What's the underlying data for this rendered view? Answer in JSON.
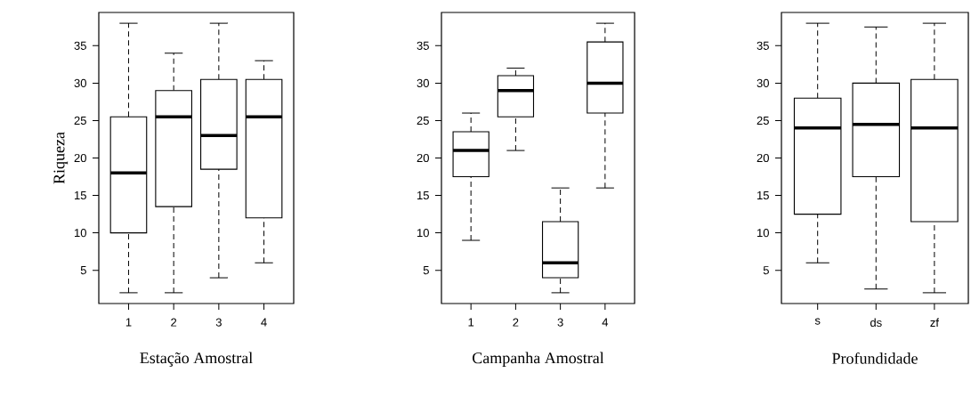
{
  "chart_data": [
    {
      "type": "box",
      "ylabel": "Riqueza",
      "xlabel": "Estação Amostral",
      "categories": [
        "1",
        "2",
        "3",
        "4"
      ],
      "ylim": [
        0.56,
        39.44
      ],
      "yticks": [
        5,
        10,
        15,
        20,
        25,
        30,
        35
      ],
      "line_style": "dashed",
      "boxes": [
        {
          "low": 2,
          "q1": 10,
          "median": 18,
          "q3": 25.5,
          "high": 38
        },
        {
          "low": 2,
          "q1": 13.5,
          "median": 25.5,
          "q3": 29,
          "high": 34
        },
        {
          "low": 4,
          "q1": 18.5,
          "median": 23,
          "q3": 30.5,
          "high": 38
        },
        {
          "low": 6,
          "q1": 12,
          "median": 25.5,
          "q3": 30.5,
          "high": 33
        }
      ]
    },
    {
      "type": "box",
      "xlabel": "Campanha Amostral",
      "categories": [
        "1",
        "2",
        "3",
        "4"
      ],
      "ylim": [
        0.56,
        39.44
      ],
      "yticks": [
        5,
        10,
        15,
        20,
        25,
        30,
        35
      ],
      "line_style": "dashed",
      "boxes": [
        {
          "low": 9,
          "q1": 17.5,
          "median": 21,
          "q3": 23.5,
          "high": 26
        },
        {
          "low": 21,
          "q1": 25.5,
          "median": 29,
          "q3": 31,
          "high": 32
        },
        {
          "low": 2,
          "q1": 4,
          "median": 6,
          "q3": 11.5,
          "high": 16
        },
        {
          "low": 16,
          "q1": 26,
          "median": 30,
          "q3": 35.5,
          "high": 38
        }
      ]
    },
    {
      "type": "box",
      "xlabel": "Profundidade",
      "categories": [
        "s",
        "ds",
        "zf"
      ],
      "ylim": [
        0.56,
        39.44
      ],
      "yticks": [
        5,
        10,
        15,
        20,
        25,
        30,
        35
      ],
      "line_style": "dashed",
      "boxes": [
        {
          "low": 6,
          "q1": 12.5,
          "median": 24,
          "q3": 28,
          "high": 38
        },
        {
          "low": 2.5,
          "q1": 17.5,
          "median": 24.5,
          "q3": 30,
          "high": 37.5
        },
        {
          "low": 2,
          "q1": 11.5,
          "median": 24,
          "q3": 30.5,
          "high": 38
        }
      ]
    }
  ]
}
